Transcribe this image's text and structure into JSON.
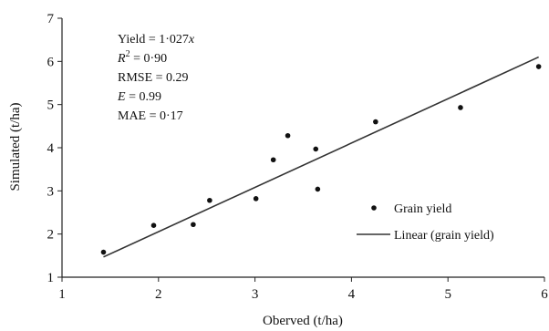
{
  "chart_data": {
    "type": "scatter",
    "xlabel": "Oberved (t/ha)",
    "ylabel": "Simulated (t/ha)",
    "xlim": [
      1,
      6
    ],
    "ylim": [
      1,
      7
    ],
    "xticks": [
      1,
      2,
      3,
      4,
      5,
      6
    ],
    "yticks": [
      1,
      2,
      3,
      4,
      5,
      6,
      7
    ],
    "grid": false,
    "legend_position": "right",
    "series": [
      {
        "name": "Grain yield",
        "kind": "points",
        "color": "#111111",
        "x": [
          1.43,
          1.95,
          2.36,
          2.53,
          3.01,
          3.19,
          3.34,
          3.63,
          3.65,
          4.25,
          5.13,
          5.94
        ],
        "y": [
          1.58,
          2.2,
          2.22,
          2.78,
          2.82,
          3.72,
          4.28,
          3.97,
          3.04,
          4.6,
          4.93,
          5.88
        ]
      },
      {
        "name": "Linear (grain yield)",
        "kind": "line",
        "color": "#333333",
        "slope": 1.027,
        "x_range": [
          1.43,
          5.94
        ]
      }
    ],
    "annotations": [
      "Yield = 1·027x",
      "R2 = 0·90",
      "RMSE = 0.29",
      "E = 0.99",
      "MAE = 0·17"
    ]
  },
  "stats": {
    "yield_prefix": "Yield = 1·027",
    "yield_var": "x",
    "r2_r": "R",
    "r2_sup": "2",
    "r2_value": " = 0·90",
    "rmse": "RMSE = 0.29",
    "e_var": "E",
    "e_value": " = 0.99",
    "mae": "MAE = 0·17"
  },
  "legend": {
    "points_label": "Grain yield",
    "line_label": "Linear (grain yield)"
  }
}
